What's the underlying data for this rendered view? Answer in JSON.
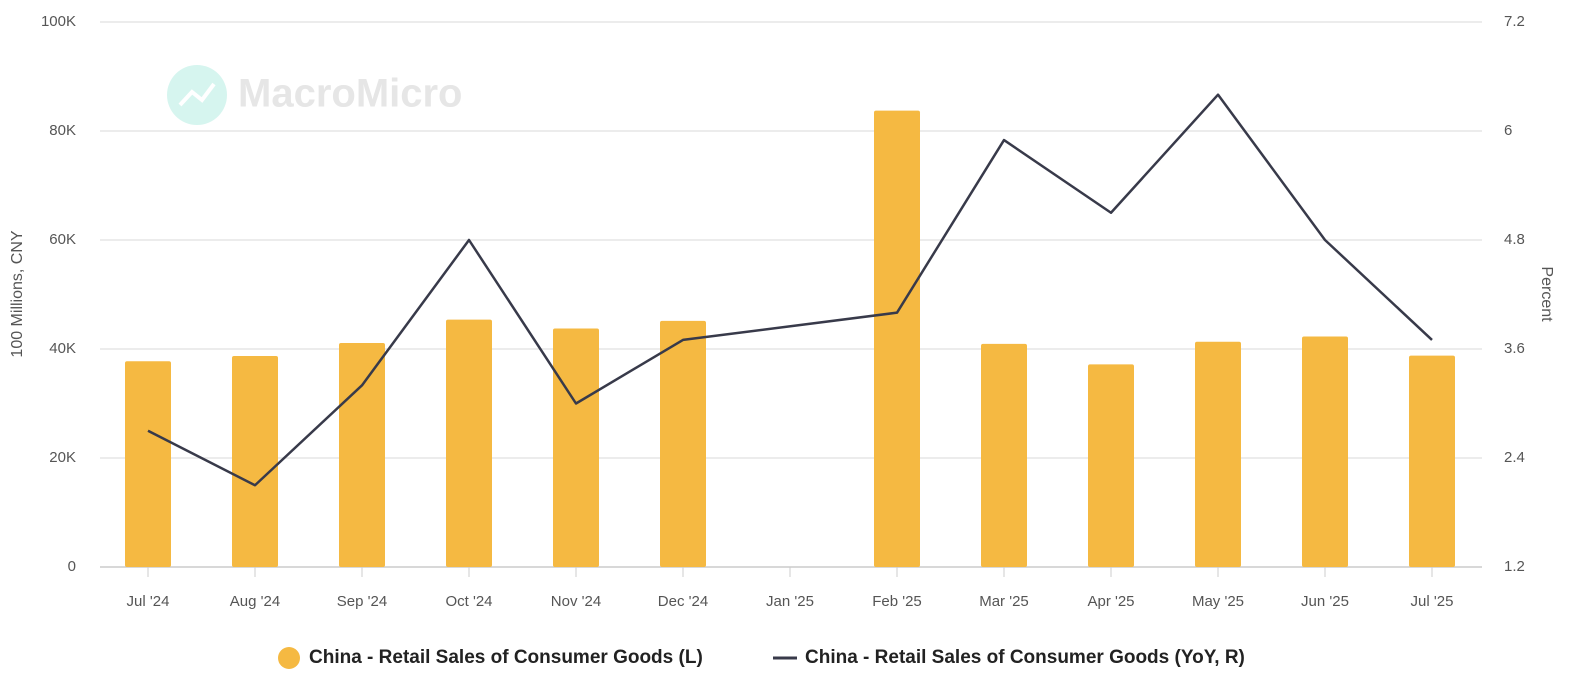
{
  "chart_data": {
    "type": "bar-line",
    "watermark": "MacroMicro",
    "ylabel": "100 Millions, CNY",
    "y2label": "Percent",
    "categories": [
      "Jul '24",
      "Aug '24",
      "Sep '24",
      "Oct '24",
      "Nov '24",
      "Dec '24",
      "Jan '25",
      "Feb '25",
      "Mar '25",
      "Apr '25",
      "May '25",
      "Jun '25",
      "Jul '25"
    ],
    "series": [
      {
        "name": "China - Retail Sales of Consumer Goods (L)",
        "type": "bar",
        "color": "#f5b942",
        "values": [
          37757,
          38726,
          41112,
          45396,
          43763,
          45172,
          null,
          83731,
          40940,
          37174,
          41326,
          42287,
          38780
        ]
      },
      {
        "name": "China - Retail Sales of Consumer Goods (YoY, R)",
        "type": "line",
        "color": "#383a4a",
        "axis": "y2",
        "x": [
          "Jul '24",
          "Aug '24",
          "Sep '24",
          "Oct '24",
          "Nov '24",
          "Dec '24",
          "Feb '25",
          "Mar '25",
          "Apr '25",
          "May '25",
          "Jun '25",
          "Jul '25"
        ],
        "values": [
          2.7,
          2.1,
          3.2,
          4.8,
          3.0,
          3.7,
          4.0,
          5.9,
          5.1,
          6.4,
          4.8,
          3.7
        ]
      }
    ],
    "ylim": [
      0,
      100000
    ],
    "yticks": [
      0,
      {
        "value": 20000,
        "label": "20K"
      },
      {
        "value": 40000,
        "label": "40K"
      },
      {
        "value": 60000,
        "label": "60K"
      },
      {
        "value": 80000,
        "label": "80K"
      },
      {
        "value": 100000,
        "label": "100K"
      }
    ],
    "y2lim": [
      1.2,
      7.2
    ],
    "y2ticks": [
      1.2,
      2.4,
      3.6,
      4.8,
      6,
      7.2
    ],
    "grid": true
  }
}
